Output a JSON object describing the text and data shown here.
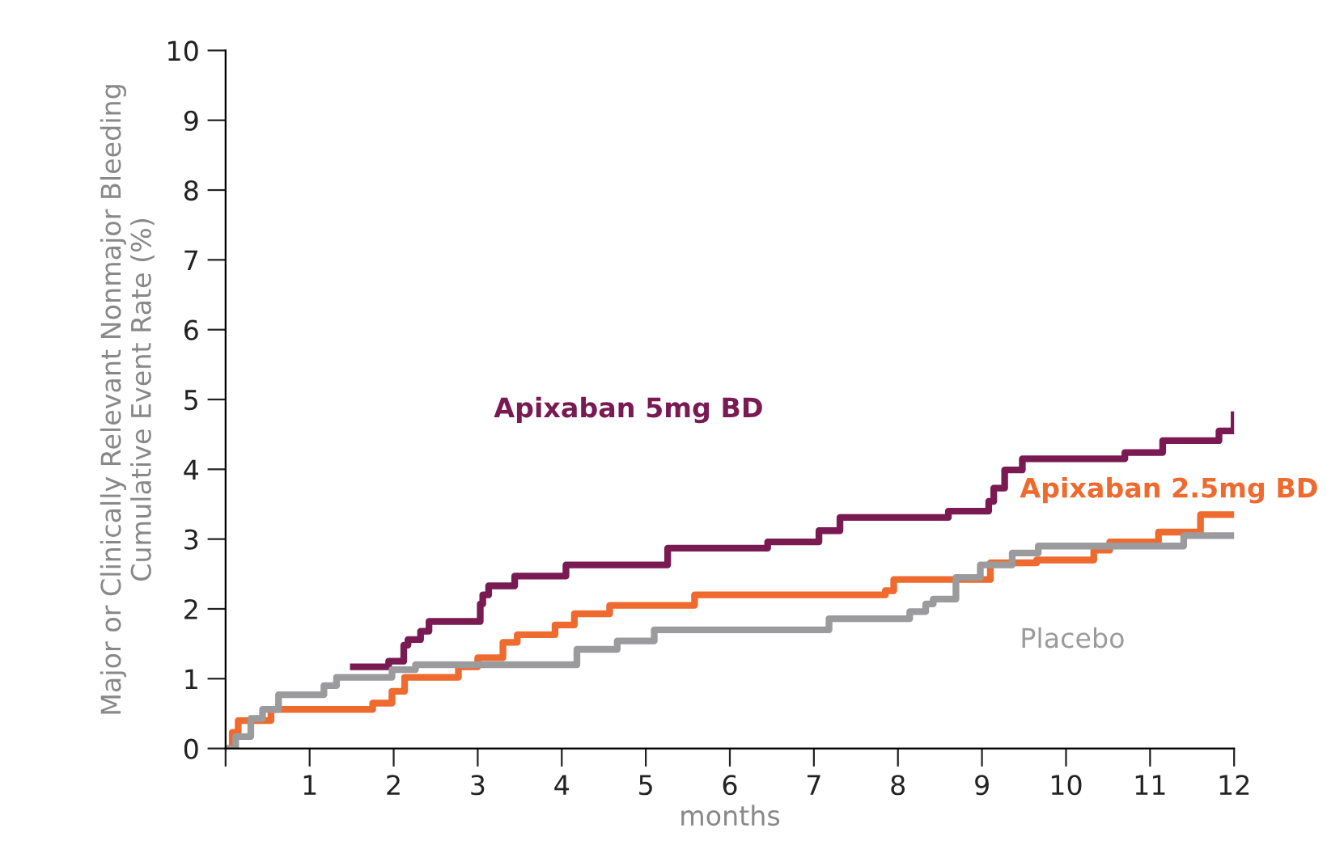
{
  "chart_data": {
    "type": "step",
    "xlabel": "months",
    "ylabel": "Major or Clinically Relevant Nonmajor Bleeding\nCumulative Event Rate (%)",
    "xlim": [
      0,
      12
    ],
    "ylim": [
      0,
      10
    ],
    "xticks": [
      {
        "value": 0,
        "label": null
      },
      1,
      2,
      3,
      4,
      5,
      6,
      7,
      8,
      9,
      10,
      11,
      12
    ],
    "yticks": [
      0,
      1,
      2,
      3,
      4,
      5,
      6,
      7,
      8,
      9,
      10
    ],
    "grid": false,
    "legend": false,
    "line_style": "solid",
    "marker": "none",
    "series": [
      {
        "name": "Apixaban 5mg BD",
        "color": "#7a1a52",
        "x": [
          1.52,
          1.94,
          2.12,
          2.17,
          2.32,
          2.42,
          3.03,
          3.06,
          3.13,
          3.44,
          4.05,
          5.26,
          6.45,
          7.06,
          7.31,
          8.6,
          9.08,
          9.14,
          9.27,
          9.48,
          10.7,
          11.15,
          11.82,
          12.0
        ],
        "values": [
          1.17,
          1.25,
          1.48,
          1.56,
          1.68,
          1.82,
          2.07,
          2.2,
          2.33,
          2.47,
          2.63,
          2.87,
          2.96,
          3.12,
          3.31,
          3.4,
          3.54,
          3.73,
          3.99,
          4.15,
          4.24,
          4.41,
          4.55,
          4.78
        ]
      },
      {
        "name": "Apixaban 2.5mg BD",
        "color": "#ee6a2e",
        "x": [
          0,
          0.08,
          0.15,
          0.54,
          1.75,
          1.98,
          2.13,
          2.77,
          3.0,
          3.3,
          3.47,
          3.92,
          4.15,
          4.57,
          5.58,
          7.85,
          7.95,
          9.1,
          9.65,
          10.33,
          10.52,
          11.1,
          11.6,
          12.0
        ],
        "values": [
          0,
          0.23,
          0.4,
          0.56,
          0.65,
          0.82,
          1.02,
          1.17,
          1.3,
          1.52,
          1.63,
          1.77,
          1.93,
          2.05,
          2.2,
          2.26,
          2.42,
          2.66,
          2.7,
          2.84,
          2.96,
          3.1,
          3.35,
          3.35
        ]
      },
      {
        "name": "Placebo",
        "color": "#9b9b9d",
        "x": [
          0,
          0.12,
          0.3,
          0.44,
          0.63,
          1.17,
          1.32,
          1.98,
          2.26,
          4.18,
          4.66,
          5.1,
          7.18,
          8.14,
          8.33,
          8.42,
          8.69,
          8.98,
          9.36,
          9.67,
          11.4,
          12.0
        ],
        "values": [
          0,
          0.17,
          0.43,
          0.56,
          0.77,
          0.9,
          1.02,
          1.13,
          1.2,
          1.42,
          1.54,
          1.7,
          1.86,
          1.96,
          2.07,
          2.14,
          2.45,
          2.63,
          2.8,
          2.9,
          3.05,
          3.05
        ]
      }
    ]
  }
}
